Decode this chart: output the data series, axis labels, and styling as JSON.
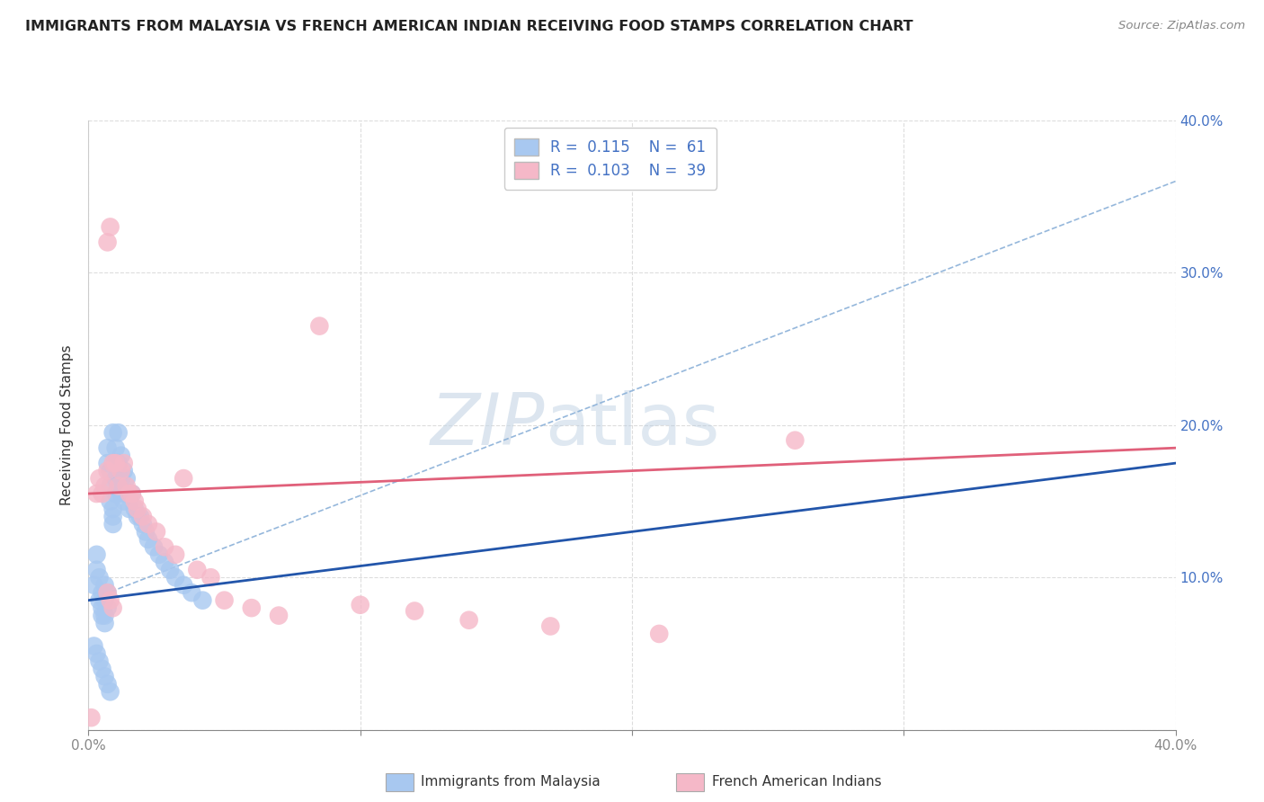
{
  "title": "IMMIGRANTS FROM MALAYSIA VS FRENCH AMERICAN INDIAN RECEIVING FOOD STAMPS CORRELATION CHART",
  "source": "Source: ZipAtlas.com",
  "ylabel": "Receiving Food Stamps",
  "xmin": 0.0,
  "xmax": 0.4,
  "ymin": 0.0,
  "ymax": 0.4,
  "legend_R1": "0.115",
  "legend_N1": "61",
  "legend_R2": "0.103",
  "legend_N2": "39",
  "color_blue": "#A8C8F0",
  "color_pink": "#F5B8C8",
  "color_blue_line": "#2255AA",
  "color_pink_line": "#E0607A",
  "color_dashed": "#8AB0D8",
  "watermark_zip": "ZIP",
  "watermark_atlas": "atlas",
  "background_color": "#FFFFFF",
  "grid_color": "#DDDDDD",
  "legend_label1": "Immigrants from Malaysia",
  "legend_label2": "French American Indians",
  "blue_x": [
    0.002,
    0.003,
    0.003,
    0.004,
    0.004,
    0.005,
    0.005,
    0.005,
    0.006,
    0.006,
    0.006,
    0.006,
    0.007,
    0.007,
    0.007,
    0.007,
    0.008,
    0.008,
    0.008,
    0.009,
    0.009,
    0.009,
    0.009,
    0.01,
    0.01,
    0.01,
    0.01,
    0.011,
    0.011,
    0.011,
    0.012,
    0.012,
    0.012,
    0.013,
    0.013,
    0.014,
    0.014,
    0.015,
    0.015,
    0.016,
    0.017,
    0.018,
    0.019,
    0.02,
    0.021,
    0.022,
    0.024,
    0.026,
    0.028,
    0.03,
    0.032,
    0.035,
    0.038,
    0.042,
    0.002,
    0.003,
    0.004,
    0.005,
    0.006,
    0.007,
    0.008
  ],
  "blue_y": [
    0.095,
    0.115,
    0.105,
    0.1,
    0.085,
    0.09,
    0.08,
    0.075,
    0.095,
    0.085,
    0.075,
    0.07,
    0.09,
    0.08,
    0.175,
    0.185,
    0.16,
    0.15,
    0.17,
    0.145,
    0.14,
    0.135,
    0.195,
    0.185,
    0.165,
    0.155,
    0.175,
    0.16,
    0.175,
    0.195,
    0.165,
    0.155,
    0.18,
    0.15,
    0.17,
    0.155,
    0.165,
    0.145,
    0.155,
    0.155,
    0.145,
    0.14,
    0.14,
    0.135,
    0.13,
    0.125,
    0.12,
    0.115,
    0.11,
    0.105,
    0.1,
    0.095,
    0.09,
    0.085,
    0.055,
    0.05,
    0.045,
    0.04,
    0.035,
    0.03,
    0.025
  ],
  "pink_x": [
    0.001,
    0.003,
    0.004,
    0.005,
    0.006,
    0.007,
    0.007,
    0.008,
    0.009,
    0.01,
    0.011,
    0.012,
    0.013,
    0.014,
    0.015,
    0.016,
    0.017,
    0.018,
    0.02,
    0.022,
    0.025,
    0.028,
    0.032,
    0.035,
    0.04,
    0.045,
    0.05,
    0.06,
    0.07,
    0.085,
    0.1,
    0.12,
    0.14,
    0.17,
    0.21,
    0.26,
    0.007,
    0.008,
    0.009
  ],
  "pink_y": [
    0.008,
    0.155,
    0.165,
    0.155,
    0.16,
    0.17,
    0.32,
    0.33,
    0.175,
    0.175,
    0.16,
    0.17,
    0.175,
    0.16,
    0.155,
    0.155,
    0.15,
    0.145,
    0.14,
    0.135,
    0.13,
    0.12,
    0.115,
    0.165,
    0.105,
    0.1,
    0.085,
    0.08,
    0.075,
    0.265,
    0.082,
    0.078,
    0.072,
    0.068,
    0.063,
    0.19,
    0.09,
    0.085,
    0.08
  ],
  "blue_line_x0": 0.0,
  "blue_line_y0": 0.085,
  "blue_line_x1": 0.4,
  "blue_line_y1": 0.175,
  "pink_line_x0": 0.0,
  "pink_line_y0": 0.155,
  "pink_line_x1": 0.4,
  "pink_line_y1": 0.185,
  "dash_line_x0": 0.0,
  "dash_line_y0": 0.085,
  "dash_line_x1": 0.4,
  "dash_line_y1": 0.36
}
